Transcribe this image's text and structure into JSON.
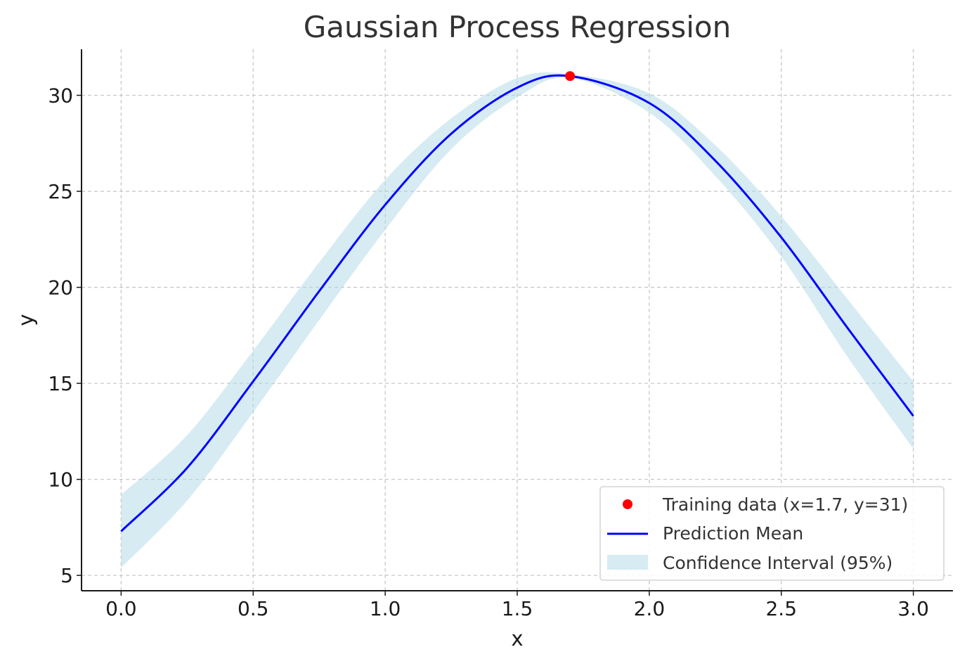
{
  "chart_data": {
    "type": "line",
    "title": "Gaussian Process Regression",
    "xlabel": "x",
    "ylabel": "y",
    "xlim": [
      -0.15,
      3.15
    ],
    "ylim": [
      4.2,
      32.4
    ],
    "xticks": [
      0.0,
      0.5,
      1.0,
      1.5,
      2.0,
      2.5,
      3.0
    ],
    "xtick_labels": [
      "0.0",
      "0.5",
      "1.0",
      "1.5",
      "2.0",
      "2.5",
      "3.0"
    ],
    "yticks": [
      5,
      10,
      15,
      20,
      25,
      30
    ],
    "ytick_labels": [
      "5",
      "10",
      "15",
      "20",
      "25",
      "30"
    ],
    "grid": true,
    "legend_position": "lower-right",
    "series": [
      {
        "name": "Training data (x=1.7, y=31)",
        "kind": "scatter",
        "color": "#ff0000",
        "x": [
          1.7
        ],
        "y": [
          31
        ]
      },
      {
        "name": "Prediction Mean",
        "kind": "line",
        "color": "#0000ff",
        "x": [
          0.0,
          0.25,
          0.5,
          0.75,
          1.0,
          1.25,
          1.5,
          1.7,
          2.0,
          2.25,
          2.5,
          2.75,
          3.0
        ],
        "y": [
          7.3,
          10.6,
          15.1,
          19.8,
          24.3,
          28.0,
          30.4,
          31.0,
          29.6,
          26.6,
          22.6,
          17.9,
          13.3
        ]
      },
      {
        "name": "Confidence Interval (95%)",
        "kind": "band",
        "color": "#add8e6",
        "x": [
          0.0,
          0.25,
          0.5,
          0.75,
          1.0,
          1.25,
          1.5,
          1.7,
          2.0,
          2.25,
          2.5,
          2.75,
          3.0
        ],
        "lower": [
          5.4,
          8.9,
          13.5,
          18.3,
          23.0,
          27.2,
          29.9,
          30.9,
          29.1,
          25.8,
          21.6,
          16.4,
          11.6
        ],
        "upper": [
          9.2,
          12.3,
          16.7,
          21.3,
          25.6,
          28.8,
          30.9,
          31.1,
          30.1,
          27.4,
          23.7,
          19.4,
          15.1
        ]
      }
    ]
  }
}
